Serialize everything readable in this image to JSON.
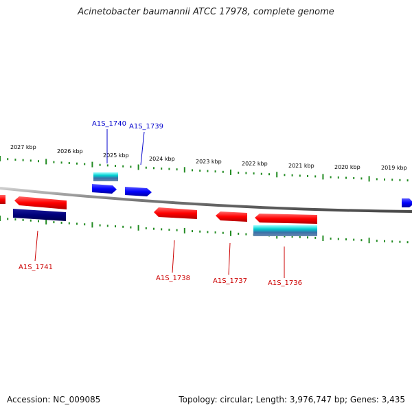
{
  "title": "Acinetobacter baumannii ATCC 17978, complete genome",
  "accession_label": "Accession: NC_009085",
  "topology_label": "Topology: circular; Length: 3,976,747 bp; Genes: 3,435",
  "colors": {
    "forward_gene": "#0000ff",
    "reverse_gene": "#ff0000",
    "forward_label": "#0000cc",
    "reverse_label": "#cc0000",
    "tick": "#228b22",
    "backbone": "#808080",
    "feature_cyan": "#00cccc",
    "feature_navy": "#00007a"
  },
  "kbp_ticks": [
    "2027 kbp",
    "2026 kbp",
    "2025 kbp",
    "2024 kbp",
    "2023 kbp",
    "2022 kbp",
    "2021 kbp",
    "2020 kbp",
    "2019 kbp"
  ],
  "genes_forward": [
    {
      "label": "A1S_1740",
      "strand": "+"
    },
    {
      "label": "A1S_1739",
      "strand": "+"
    }
  ],
  "genes_reverse": [
    {
      "label": "A1S_1741",
      "strand": "-"
    },
    {
      "label": "A1S_1738",
      "strand": "-"
    },
    {
      "label": "A1S_1737",
      "strand": "-"
    },
    {
      "label": "A1S_1736",
      "strand": "-"
    }
  ]
}
